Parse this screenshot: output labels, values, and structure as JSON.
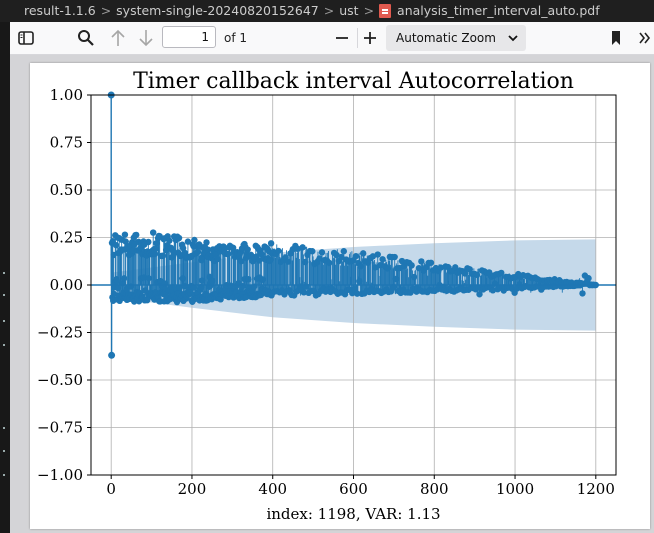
{
  "breadcrumb": {
    "items": [
      "result-1.1.6",
      "system-single-20240820152647",
      "ust",
      "analysis_timer_interval_auto.pdf"
    ],
    "separator": ">"
  },
  "toolbar": {
    "icons": [
      "sidebar-toggle-icon",
      "search-icon",
      "arrow-up-icon",
      "arrow-down-icon",
      "minus-icon",
      "plus-icon",
      "bookmark-icon",
      "overflow-icon"
    ],
    "page_number": "1",
    "page_count_label": "of 1",
    "zoom_value": "Automatic Zoom"
  },
  "chart_data": {
    "type": "stem",
    "title": "Timer callback interval Autocorrelation",
    "xlabel": "index: 1198, VAR: 1.13",
    "ylabel": "",
    "xlim": [
      -50,
      1250
    ],
    "ylim": [
      -1.0,
      1.0
    ],
    "xticks": [
      "0",
      "200",
      "400",
      "600",
      "800",
      "1000",
      "1200"
    ],
    "yticks": [
      "1.00",
      "0.75",
      "0.50",
      "0.25",
      "0.00",
      "−0.25",
      "−0.50",
      "−0.75",
      "−1.00"
    ],
    "grid": true,
    "n_lags": 1200,
    "lag0_value": 1.0,
    "lag1_value": -0.37,
    "positive_envelope": [
      [
        0,
        0.27
      ],
      [
        100,
        0.28
      ],
      [
        200,
        0.24
      ],
      [
        300,
        0.22
      ],
      [
        400,
        0.22
      ],
      [
        500,
        0.2
      ],
      [
        600,
        0.18
      ],
      [
        700,
        0.15
      ],
      [
        800,
        0.12
      ],
      [
        900,
        0.09
      ],
      [
        1000,
        0.06
      ],
      [
        1100,
        0.03
      ],
      [
        1200,
        0.0
      ]
    ],
    "negative_envelope": [
      [
        0,
        -0.09
      ],
      [
        200,
        -0.09
      ],
      [
        400,
        -0.06
      ],
      [
        600,
        -0.05
      ],
      [
        800,
        -0.04
      ],
      [
        1000,
        -0.02
      ],
      [
        1200,
        0.0
      ]
    ],
    "confidence_band": [
      [
        0,
        0.065
      ],
      [
        200,
        0.12
      ],
      [
        400,
        0.17
      ],
      [
        600,
        0.2
      ],
      [
        800,
        0.22
      ],
      [
        1000,
        0.235
      ],
      [
        1200,
        0.24
      ]
    ],
    "colors": {
      "stem": "#1f77b4",
      "band": "#c5d9ea",
      "grid": "#b0b0b0"
    }
  }
}
